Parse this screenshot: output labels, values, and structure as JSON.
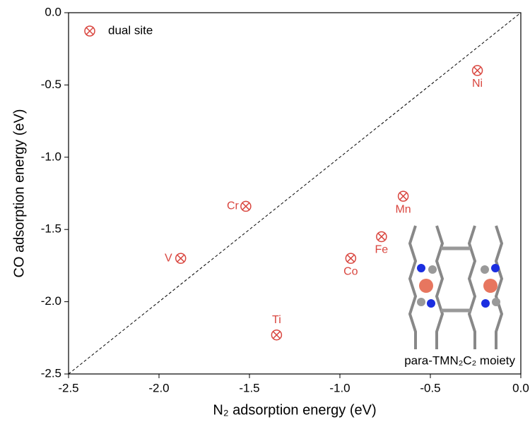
{
  "chart_data": {
    "type": "scatter",
    "x_label": "N₂ adsorption energy (eV)",
    "y_label": "CO adsorption energy (eV)",
    "annotation": "para-TMN₂C₂ moiety",
    "xlim": [
      -2.5,
      0.0
    ],
    "ylim": [
      -2.5,
      0.0
    ],
    "xticks": [
      {
        "value": -2.5,
        "label": "-2.5"
      },
      {
        "value": -2.0,
        "label": "-2.0"
      },
      {
        "value": -1.5,
        "label": "-1.5"
      },
      {
        "value": -1.0,
        "label": "-1.0"
      },
      {
        "value": -0.5,
        "label": "-0.5"
      },
      {
        "value": 0.0,
        "label": "0.0"
      }
    ],
    "yticks": [
      {
        "value": -2.5,
        "label": "-2.5"
      },
      {
        "value": -2.0,
        "label": "-2.0"
      },
      {
        "value": -1.5,
        "label": "-1.5"
      },
      {
        "value": -1.0,
        "label": "-1.0"
      },
      {
        "value": -0.5,
        "label": "-0.5"
      },
      {
        "value": 0.0,
        "label": "0.0"
      }
    ],
    "legend": "upper left",
    "series": [
      {
        "name": "dual site",
        "color": "#d9463f",
        "labels": [
          "Ti",
          "V",
          "Cr",
          "Mn",
          "Fe",
          "Co",
          "Ni"
        ],
        "x": [
          -1.35,
          -1.88,
          -1.52,
          -0.65,
          -0.77,
          -0.94,
          -0.24
        ],
        "values": [
          -2.23,
          -1.7,
          -1.34,
          -1.27,
          -1.55,
          -1.7,
          -0.4
        ]
      }
    ]
  }
}
